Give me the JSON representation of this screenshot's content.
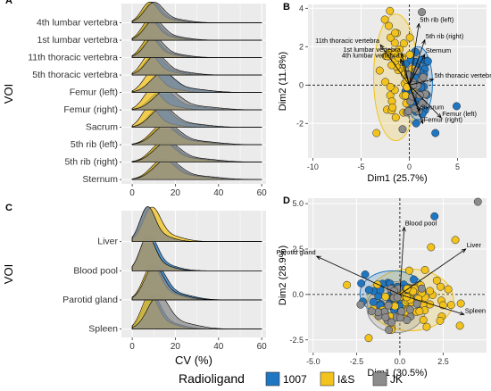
{
  "colors": {
    "1007": "#1f77c2",
    "I&S": "#f2c21d",
    "JK": "#8c8c8c",
    "panel_bg": "#ebebeb",
    "grid": "#ffffff",
    "text": "#333333"
  },
  "legend": {
    "title": "Radioligand",
    "items": [
      {
        "name": "1007",
        "color": "#1f77c2"
      },
      {
        "name": "I&S",
        "color": "#f2c21d"
      },
      {
        "name": "JK",
        "color": "#8c8c8c"
      }
    ]
  },
  "chart_data": [
    {
      "panel": "A",
      "type": "ridgeline",
      "ylabel": "VOI",
      "xlabel": "",
      "xlim": [
        -5,
        62
      ],
      "xticks": [
        0,
        20,
        40,
        60
      ],
      "grid": true,
      "categories": [
        "4th lumbar vertebra",
        "1st lumbar vertebra",
        "11th thoracic vertebra",
        "5th thoracic vertebra",
        "Femur (left)",
        "Femur (right)",
        "Sacrum",
        "5th rib (left)",
        "5th rib (right)",
        "Sternum"
      ],
      "series": [
        {
          "name": "1007",
          "peaks": [
            9,
            9,
            9,
            10,
            14,
            14,
            13,
            15,
            15,
            15
          ]
        },
        {
          "name": "I&S",
          "peaks": [
            8,
            8,
            8,
            8,
            9,
            9,
            8,
            14,
            14,
            14
          ]
        },
        {
          "name": "JK",
          "peaks": [
            10,
            10,
            10,
            11,
            14,
            16,
            14,
            16,
            16,
            16
          ]
        }
      ]
    },
    {
      "panel": "B",
      "type": "scatter",
      "xlabel": "Dim1 (25.7%)",
      "ylabel": "Dim2 (11.8%)",
      "xlim": [
        -10.5,
        8
      ],
      "ylim": [
        -3.8,
        4.2
      ],
      "xticks": [
        -10,
        -5,
        0,
        5
      ],
      "yticks": [
        -2,
        0,
        2,
        4
      ],
      "grid": true,
      "arrows": [
        {
          "label": "5th rib (left)",
          "x": 1.0,
          "y": 3.2
        },
        {
          "label": "5th rib (right)",
          "x": 1.6,
          "y": 2.35
        },
        {
          "label": "11th thoracic vertebra",
          "x": -3.0,
          "y": 2.1
        },
        {
          "label": "1st lumbar vertebra",
          "x": -0.8,
          "y": 1.65
        },
        {
          "label": "4th lumbar vertebra",
          "x": -0.9,
          "y": 1.35
        },
        {
          "label": "Sternum",
          "x": 1.6,
          "y": 1.6
        },
        {
          "label": "5th thoracic vertebra",
          "x": 2.5,
          "y": 0.3
        },
        {
          "label": "Sacrum",
          "x": 1.1,
          "y": -1.35
        },
        {
          "label": "Femur (right)",
          "x": 1.4,
          "y": -2.0
        },
        {
          "label": "Femur (left)",
          "x": 3.3,
          "y": -1.7
        }
      ],
      "ellipses": [
        {
          "name": "I&S",
          "cx": -1.4,
          "cy": 0.4,
          "rx": 2.3,
          "ry": 3.3,
          "angle": 0
        },
        {
          "name": "1007",
          "cx": 0.9,
          "cy": 0.1,
          "rx": 1.5,
          "ry": 1.9,
          "angle": 0
        },
        {
          "name": "JK",
          "cx": 0.7,
          "cy": -0.3,
          "rx": 1.2,
          "ry": 1.8,
          "angle": 0
        }
      ],
      "outliers": [
        {
          "series": "JK",
          "x": 1.3,
          "y": 3.8
        },
        {
          "series": "1007",
          "x": 4.9,
          "y": -1.1
        },
        {
          "series": "1007",
          "x": 2.7,
          "y": -2.5
        },
        {
          "series": "I&S",
          "x": -3.4,
          "y": -2.5
        },
        {
          "series": "JK",
          "x": -0.7,
          "y": -2.3
        }
      ]
    },
    {
      "panel": "C",
      "type": "ridgeline",
      "ylabel": "VOI",
      "xlabel": "CV (%)",
      "xlim": [
        -5,
        62
      ],
      "xticks": [
        0,
        20,
        40,
        60
      ],
      "grid": true,
      "categories": [
        "Liver",
        "Blood pool",
        "Parotid gland",
        "Spleen"
      ],
      "series": [
        {
          "name": "1007",
          "peaks": [
            7,
            8,
            11,
            9
          ]
        },
        {
          "name": "I&S",
          "peaks": [
            9,
            7,
            9,
            8
          ]
        },
        {
          "name": "JK",
          "peaks": [
            7,
            7,
            10,
            12
          ]
        }
      ]
    },
    {
      "panel": "D",
      "type": "scatter",
      "xlabel": "Dim1 (30.5%)",
      "ylabel": "Dim2 (28.9%)",
      "xlim": [
        -5.3,
        5.0
      ],
      "ylim": [
        -3.2,
        5.3
      ],
      "xticks": [
        -5.0,
        -2.5,
        0.0,
        2.5
      ],
      "yticks": [
        -2.5,
        0.0,
        2.5,
        5.0
      ],
      "grid": true,
      "arrows": [
        {
          "label": "Blood pool",
          "x": 0.25,
          "y": 3.7
        },
        {
          "label": "Liver",
          "x": 3.8,
          "y": 2.5
        },
        {
          "label": "Parotid gland",
          "x": -4.8,
          "y": 2.1
        },
        {
          "label": "Spleen",
          "x": 3.7,
          "y": -1.1
        }
      ],
      "ellipses": [
        {
          "name": "I&S",
          "cx": 0.6,
          "cy": -0.3,
          "rx": 2.5,
          "ry": 1.7,
          "angle": 0
        },
        {
          "name": "1007",
          "cx": -0.4,
          "cy": 0.05,
          "rx": 1.9,
          "ry": 1.25,
          "angle": 0
        },
        {
          "name": "JK",
          "cx": -0.2,
          "cy": -0.7,
          "rx": 1.7,
          "ry": 1.4,
          "angle": 0
        }
      ],
      "outliers": [
        {
          "series": "JK",
          "x": 4.5,
          "y": 5.1
        },
        {
          "series": "1007",
          "x": 2.0,
          "y": 4.3
        },
        {
          "series": "I&S",
          "x": 3.2,
          "y": 3.0
        },
        {
          "series": "I&S",
          "x": 1.8,
          "y": 2.6
        },
        {
          "series": "1007",
          "x": -2.0,
          "y": 1.1
        },
        {
          "series": "I&S",
          "x": -1.8,
          "y": -2.4
        }
      ]
    }
  ]
}
